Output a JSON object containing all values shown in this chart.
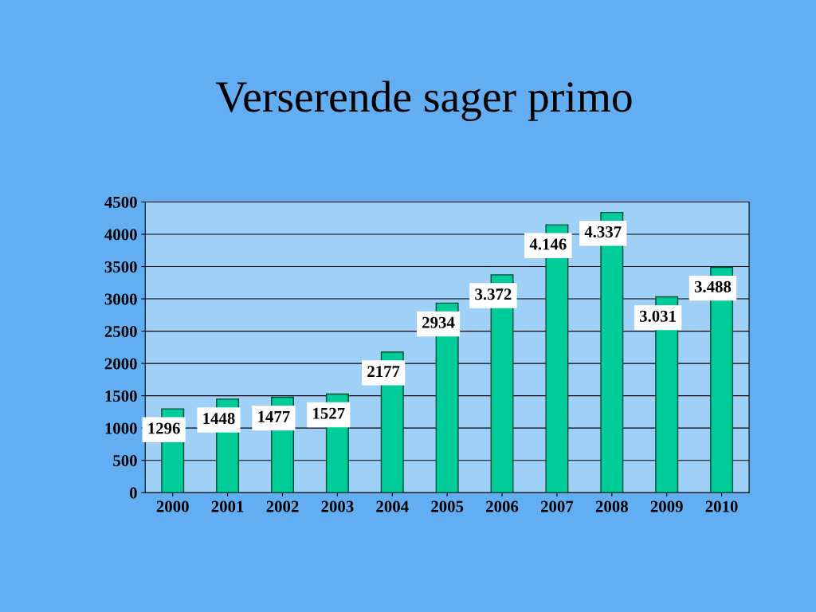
{
  "chart_data": {
    "type": "bar",
    "title": "Verserende sager primo",
    "categories": [
      "2000",
      "2001",
      "2002",
      "2003",
      "2004",
      "2005",
      "2006",
      "2007",
      "2008",
      "2009",
      "2010"
    ],
    "values": [
      1296,
      1448,
      1477,
      1527,
      2177,
      2934,
      3372,
      4146,
      4337,
      3031,
      3488
    ],
    "value_labels": [
      "1296",
      "1448",
      "1477",
      "1527",
      "2177",
      "2934",
      "3.372",
      "4.146",
      "4.337",
      "3.031",
      "3.488"
    ],
    "color": "#00cc99",
    "ylim": [
      0,
      4500
    ],
    "yticks": [
      0,
      500,
      1000,
      1500,
      2000,
      2500,
      3000,
      3500,
      4000,
      4500
    ],
    "grid": "y",
    "legend": false
  }
}
